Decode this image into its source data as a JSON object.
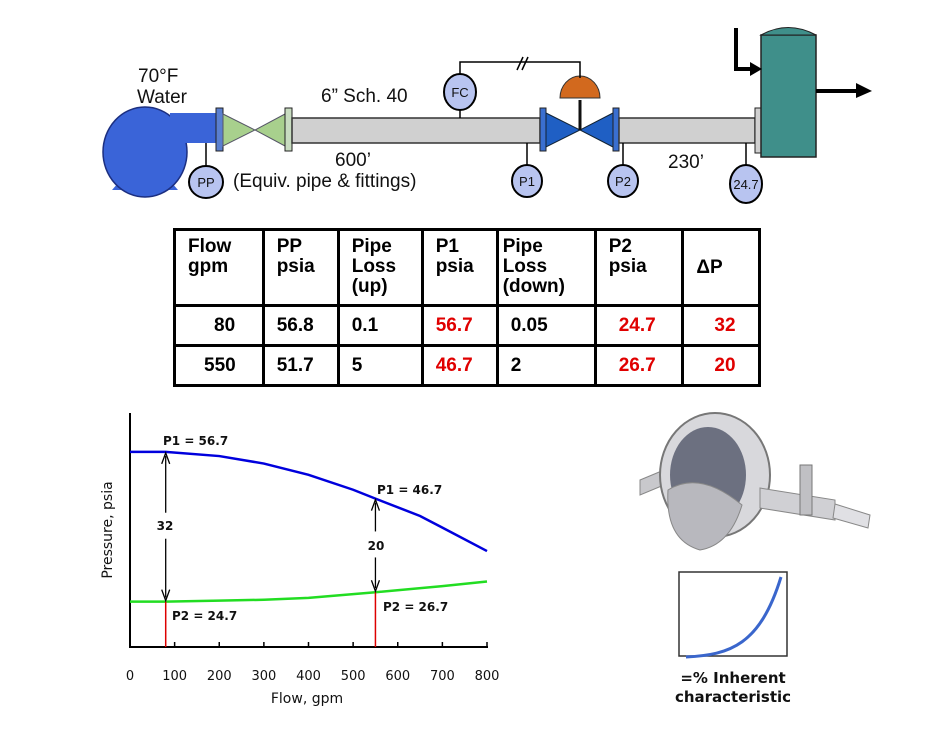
{
  "diagram": {
    "fluid_temp": "70°F",
    "fluid": "Water",
    "pipe_spec": "6” Sch. 40",
    "upstream_length": "600’",
    "upstream_note": "(Equiv. pipe & fittings)",
    "downstream_length": "230’",
    "controller": "FC",
    "gauges": [
      "PP",
      "P1",
      "P2",
      "24.7"
    ],
    "colors": {
      "pump": "#3a64d8",
      "valve_green": "#a8d08d",
      "control_valve": "#1f5fc4",
      "actuator": "#d2691e",
      "pipe": "#d0d0d0",
      "vessel": "#3f8f8a",
      "gauge": "#b8c4f0"
    }
  },
  "table": {
    "headers": [
      [
        "Flow",
        "gpm"
      ],
      [
        "PP",
        "psia"
      ],
      [
        "Pipe",
        "Loss",
        "(up)"
      ],
      [
        "P1",
        "psia"
      ],
      [
        "Pipe",
        "Loss",
        "(down)"
      ],
      [
        "P2",
        "psia"
      ],
      [
        "ΔP"
      ]
    ],
    "rows": [
      [
        "80",
        "56.8",
        "0.1",
        "56.7",
        "0.05",
        "24.7",
        "32"
      ],
      [
        "550",
        "51.7",
        "5",
        "46.7",
        "2",
        "26.7",
        "20"
      ]
    ],
    "highlight_color": "#e00000"
  },
  "chart_data": {
    "type": "line",
    "xlabel": "Flow, gpm",
    "ylabel": "Pressure, psia",
    "xlim": [
      0,
      800
    ],
    "ylim": [
      15,
      65
    ],
    "x_ticks": [
      "0",
      "100",
      "200",
      "300",
      "400",
      "500",
      "600",
      "700",
      "800"
    ],
    "grid": false,
    "series": [
      {
        "color": "#0000dd",
        "x": [
          0,
          80,
          200,
          300,
          400,
          500,
          550,
          650,
          700,
          800
        ],
        "y": [
          56.7,
          56.7,
          55.8,
          54.2,
          51.8,
          48.6,
          46.7,
          43.0,
          40.5,
          35.5
        ]
      },
      {
        "color": "#22dd22",
        "x": [
          0,
          80,
          200,
          300,
          400,
          550,
          700,
          800
        ],
        "y": [
          24.7,
          24.7,
          24.9,
          25.1,
          25.5,
          26.7,
          28.0,
          29.0
        ]
      }
    ],
    "annotations": [
      {
        "text": "P1 = 56.7"
      },
      {
        "text": "P2 = 24.7"
      },
      {
        "text": "32"
      },
      {
        "text": "P1 = 46.7"
      },
      {
        "text": "P2 = 26.7"
      },
      {
        "text": "20"
      }
    ],
    "markers": [
      {
        "x": 80,
        "top": 56.7,
        "bottom": 24.7,
        "delta": "32"
      },
      {
        "x": 550,
        "top": 46.7,
        "bottom": 26.7,
        "delta": "20"
      }
    ],
    "marker_color": "#dd0000"
  },
  "inset": {
    "caption": [
      "=% Inherent",
      "characteristic"
    ],
    "curve_color": "#3a66cc"
  }
}
